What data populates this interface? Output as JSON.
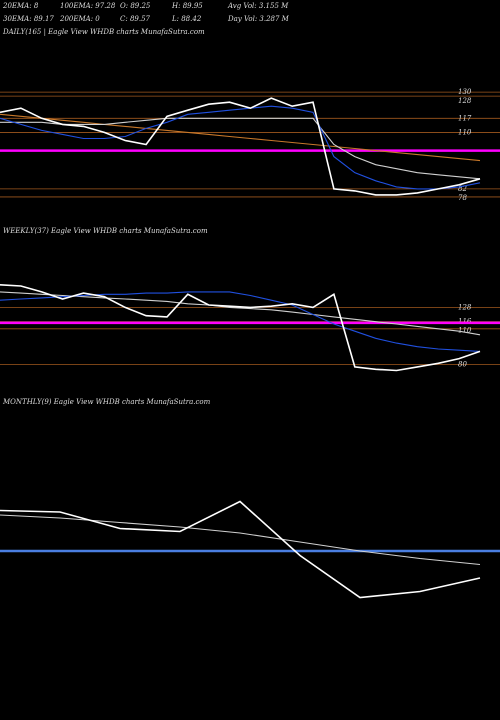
{
  "header": {
    "row1": [
      "20EMA: 8",
      "100EMA: 97.28",
      "O: 89.25",
      "H: 89.95",
      "Avg Vol: 3.155 M"
    ],
    "row2": [
      "30EMA: 89.17",
      "200EMA: 0",
      "C: 89.57",
      "L: 88.42",
      "Day Vol: 3.287 M"
    ]
  },
  "chart_data": [
    {
      "type": "line",
      "title": "DAILY(165 | Eagle  View  WHDB charts MunafaSutra.com",
      "categories": [
        null,
        null,
        null,
        null,
        null,
        null,
        null,
        null,
        null,
        null,
        null,
        null,
        null,
        null,
        null,
        null,
        null,
        null,
        null,
        null,
        null,
        null,
        null,
        null
      ],
      "series": [
        {
          "color": "#c8782a",
          "values": [
            119,
            118,
            117,
            116,
            115,
            114,
            113,
            112,
            111,
            110,
            109,
            108,
            107,
            106,
            105,
            104,
            103,
            102,
            101,
            100,
            99,
            98,
            97,
            96
          ]
        },
        {
          "color": "#d0d0d0",
          "values": [
            115,
            115,
            115,
            114,
            114,
            114,
            115,
            116,
            117,
            117,
            117,
            117,
            117,
            117,
            117,
            117,
            104,
            98,
            94,
            92,
            90,
            89,
            88,
            87
          ]
        },
        {
          "color": "#2050e0",
          "values": [
            117,
            114,
            111,
            109,
            107,
            107,
            108,
            112,
            115,
            119,
            120,
            121,
            122,
            123,
            122,
            120,
            98,
            90,
            86,
            83,
            82,
            82,
            83,
            85
          ]
        },
        {
          "color": "#ffffff",
          "values": [
            120,
            122,
            117,
            114,
            113,
            110,
            106,
            104,
            118,
            121,
            124,
            125,
            122,
            127,
            123,
            125,
            82,
            81,
            79,
            79,
            80,
            82,
            84,
            87
          ]
        }
      ],
      "hline": {
        "value": 101,
        "color": "#ff00ff"
      },
      "ylim": [
        74,
        136
      ],
      "yticks": [
        130,
        128,
        117,
        110,
        82,
        78
      ]
    },
    {
      "type": "line",
      "title": "WEEKLY(37) Eagle  View  WHDB charts MunafaSutra.com",
      "categories": [
        null,
        null,
        null,
        null,
        null,
        null,
        null,
        null,
        null,
        null,
        null,
        null,
        null,
        null,
        null,
        null,
        null,
        null,
        null,
        null,
        null,
        null,
        null,
        null
      ],
      "series": [
        {
          "color": "#d0d0d0",
          "values": [
            141,
            140,
            139,
            138,
            137,
            136,
            135,
            134,
            133,
            131,
            130,
            128,
            127,
            126,
            124,
            122,
            120,
            118,
            116,
            114,
            112,
            110,
            108,
            105
          ]
        },
        {
          "color": "#2050e0",
          "values": [
            134,
            135,
            136,
            137,
            138,
            139,
            139,
            140,
            140,
            141,
            141,
            141,
            138,
            134,
            130,
            122,
            114,
            108,
            102,
            98,
            95,
            93,
            92,
            91
          ]
        },
        {
          "color": "#ffffff",
          "values": [
            147,
            146,
            141,
            135,
            140,
            137,
            128,
            121,
            120,
            139,
            130,
            129,
            128,
            129,
            131,
            128,
            139,
            78,
            76,
            75,
            78,
            81,
            85,
            91
          ]
        }
      ],
      "hline": {
        "value": 115,
        "color": "#ff00ff"
      },
      "ylim": [
        67,
        151
      ],
      "yticks": [
        128,
        116,
        110,
        80
      ]
    },
    {
      "type": "line",
      "title": "MONTHLY(9) Eagle  View  WHDB charts MunafaSutra.com",
      "categories": [
        null,
        null,
        null,
        null,
        null,
        null,
        null,
        null,
        null
      ],
      "series": [
        {
          "color": "#d0d0d0",
          "values": [
            130,
            128,
            125,
            122,
            118,
            112,
            106,
            101,
            97
          ]
        },
        {
          "color": "#ffffff",
          "values": [
            133,
            132,
            121,
            119,
            139,
            103,
            75,
            79,
            88
          ]
        }
      ],
      "hline": {
        "value": 106,
        "color": "#4a7ee0"
      },
      "ylim": [
        60,
        160
      ],
      "yticks": []
    }
  ]
}
